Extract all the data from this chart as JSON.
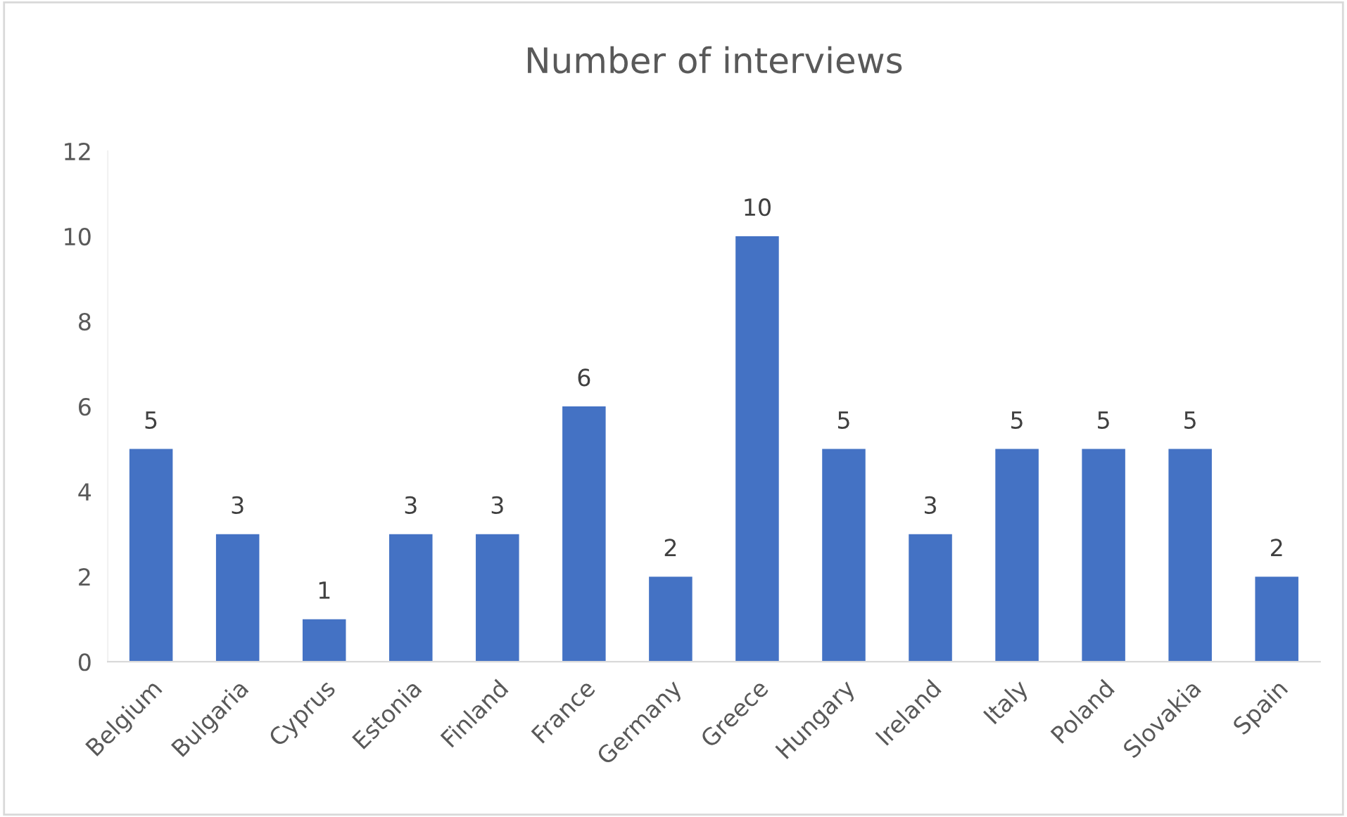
{
  "chart_data": {
    "type": "bar",
    "title": "Number of interviews",
    "categories": [
      "Belgium",
      "Bulgaria",
      "Cyprus",
      "Estonia",
      "Finland",
      "France",
      "Germany",
      "Greece",
      "Hungary",
      "Ireland",
      "Italy",
      "Poland",
      "Slovakia",
      "Spain"
    ],
    "values": [
      5,
      3,
      1,
      3,
      3,
      6,
      2,
      10,
      5,
      3,
      5,
      5,
      5,
      2
    ],
    "color": "#4472c4",
    "ylim": [
      0,
      12
    ],
    "yticks": [
      0,
      2,
      4,
      6,
      8,
      10,
      12
    ],
    "data_labels": true,
    "grid": false
  }
}
